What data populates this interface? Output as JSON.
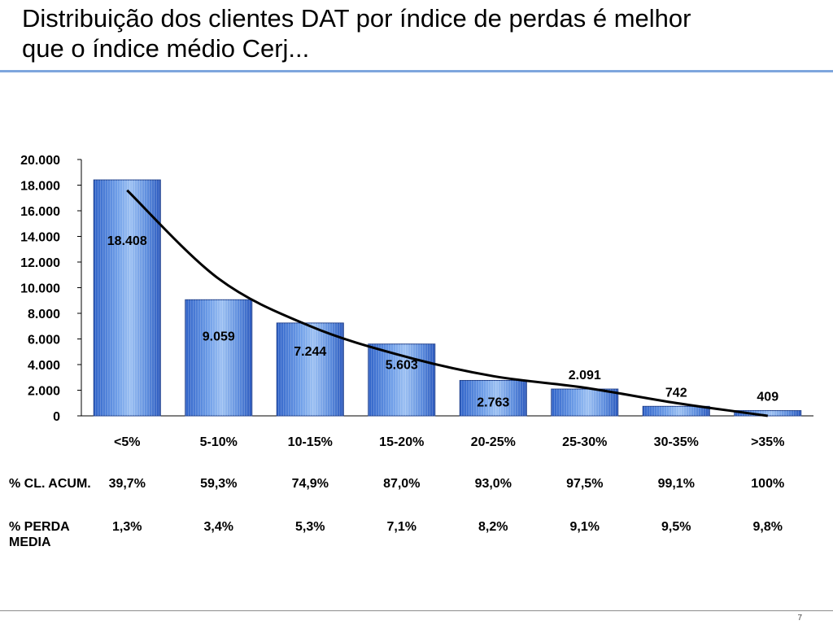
{
  "slide": {
    "title_line1": "Distribuição dos clientes DAT por índice de perdas é melhor",
    "title_line2": "que o índice médio Cerj...",
    "page_number": "7"
  },
  "chart_data": {
    "type": "bar",
    "title": "",
    "xlabel": "",
    "ylabel": "",
    "categories": [
      "<5%",
      "5-10%",
      "10-15%",
      "15-20%",
      "20-25%",
      "25-30%",
      "30-35%",
      ">35%"
    ],
    "values": [
      18408,
      9059,
      7244,
      5603,
      2763,
      2091,
      742,
      409
    ],
    "value_labels": [
      "18.408",
      "9.059",
      "7.244",
      "5.603",
      "2.763",
      "2.091",
      "742",
      "409"
    ],
    "ylim": [
      0,
      20000
    ],
    "yticks": [
      0,
      2000,
      4000,
      6000,
      8000,
      10000,
      12000,
      14000,
      16000,
      18000,
      20000
    ],
    "ytick_labels": [
      "0",
      "2.000",
      "4.000",
      "6.000",
      "8.000",
      "10.000",
      "12.000",
      "14.000",
      "16.000",
      "18.000",
      "20.000"
    ],
    "grid": false,
    "legend": "none",
    "bar_color": "#5b8fe0",
    "trendline": {
      "type": "curve",
      "color": "#000000",
      "values": [
        17600,
        10700,
        7000,
        4700,
        3100,
        2200,
        1000,
        0
      ]
    }
  },
  "table": {
    "rows": [
      {
        "header": "% CL. ACUM.",
        "values": [
          "39,7%",
          "59,3%",
          "74,9%",
          "87,0%",
          "93,0%",
          "97,5%",
          "99,1%",
          "100%"
        ]
      },
      {
        "header": "% PERDA MEDIA",
        "values": [
          "1,3%",
          "3,4%",
          "5,3%",
          "7,1%",
          "8,2%",
          "9,1%",
          "9,5%",
          "9,8%"
        ]
      }
    ]
  }
}
